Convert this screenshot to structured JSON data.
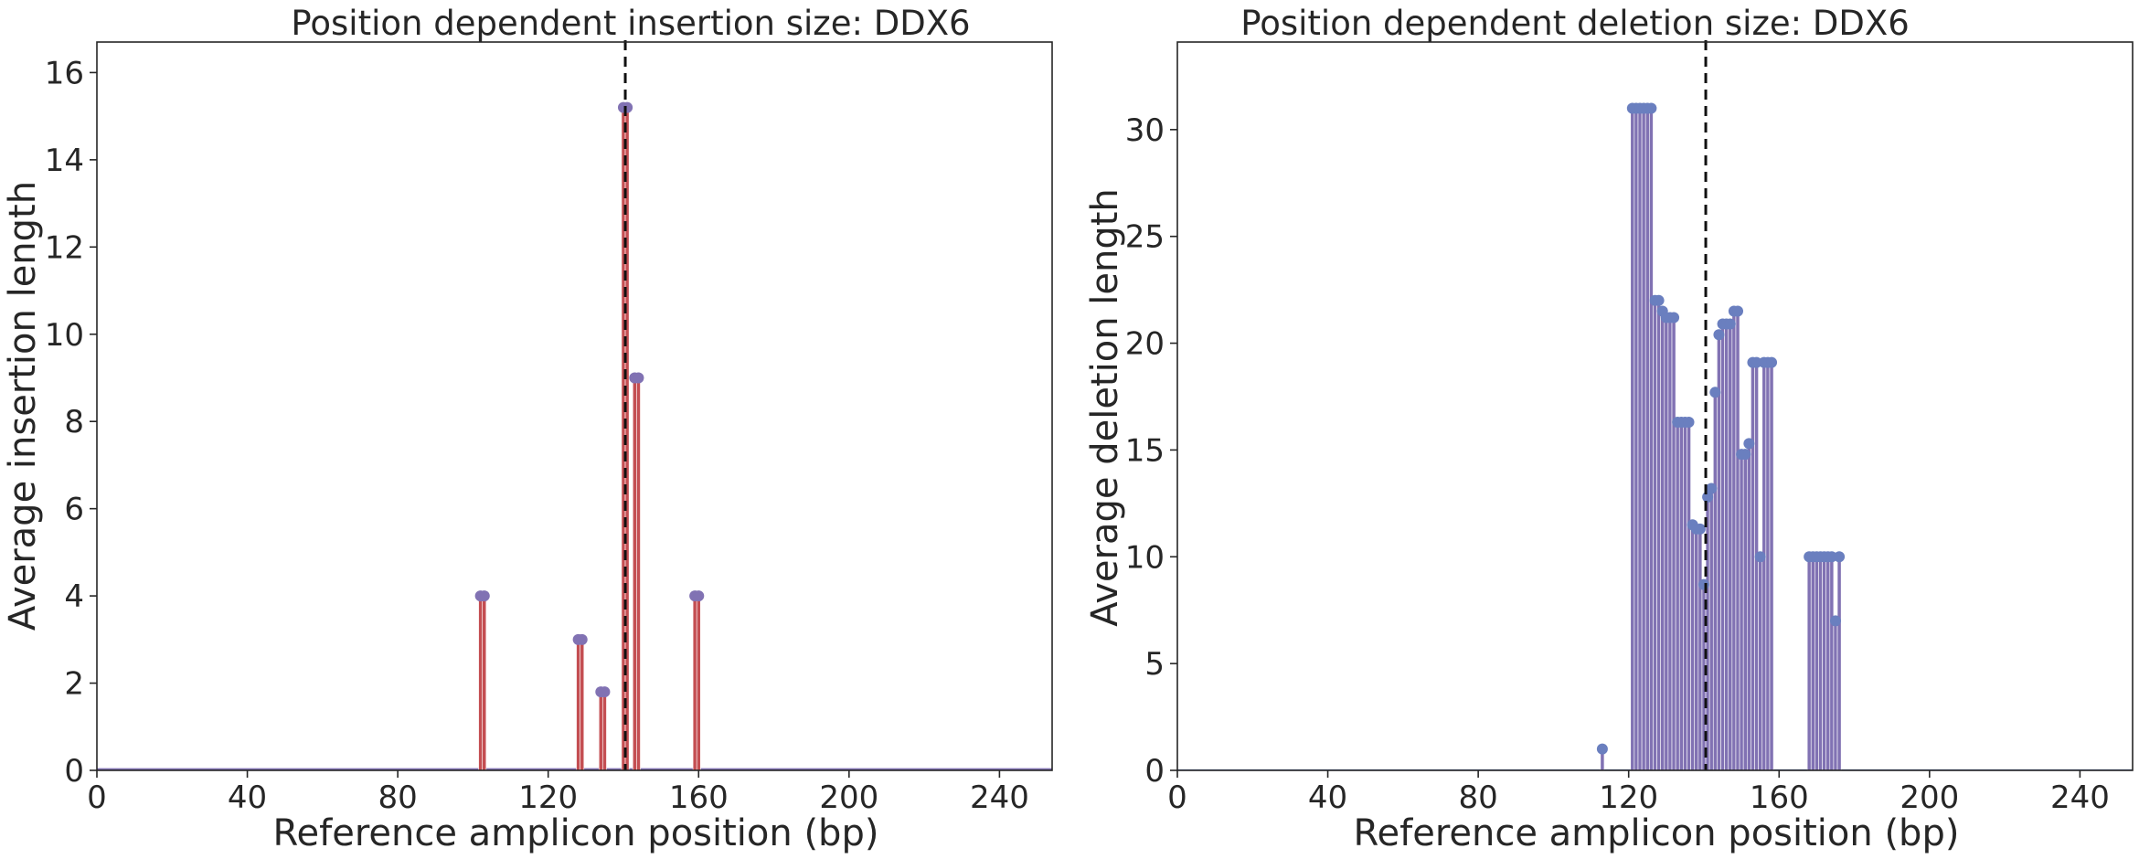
{
  "chart_data": [
    {
      "type": "bar",
      "title": "Position dependent insertion size: DDX6",
      "xlabel": "Reference amplicon position (bp)",
      "ylabel": "Average insertion length",
      "xlim": [
        0,
        254
      ],
      "ylim": [
        0,
        16.7
      ],
      "xticks": [
        0,
        40,
        80,
        120,
        160,
        200,
        240
      ],
      "yticks": [
        0,
        2,
        4,
        6,
        8,
        10,
        12,
        14,
        16
      ],
      "cut_site": 140.5,
      "baseline": 0.05,
      "color": "#c44e52",
      "marker_color": "#8172b3",
      "grid": false,
      "series": [
        {
          "x": [
            102,
            103,
            128,
            129,
            134,
            135,
            140,
            141,
            143,
            144,
            159,
            160
          ],
          "values": [
            4.0,
            4.0,
            3.0,
            3.0,
            1.8,
            1.8,
            15.2,
            15.2,
            9.0,
            9.0,
            4.0,
            4.0
          ]
        }
      ]
    },
    {
      "type": "bar",
      "title": "Position dependent deletion size: DDX6",
      "xlabel": "Reference amplicon position (bp)",
      "ylabel": "Average deletion length",
      "xlim": [
        0,
        254
      ],
      "ylim": [
        0,
        34.1
      ],
      "xticks": [
        0,
        40,
        80,
        120,
        160,
        200,
        240
      ],
      "yticks": [
        0,
        5,
        10,
        15,
        20,
        25,
        30
      ],
      "cut_site": 140.5,
      "baseline": 0.05,
      "color": "#8172b3",
      "marker_color": "#6a7fbf",
      "grid": false,
      "series": [
        {
          "x": [
            113,
            121,
            122,
            123,
            124,
            125,
            126,
            127,
            128,
            129,
            130,
            131,
            132,
            133,
            134,
            135,
            136,
            137,
            138,
            139,
            140,
            141,
            142,
            143,
            144,
            145,
            146,
            147,
            148,
            149,
            150,
            151,
            152,
            153,
            154,
            155,
            156,
            157,
            158,
            168,
            169,
            170,
            171,
            172,
            173,
            174,
            175,
            176
          ],
          "values": [
            1.0,
            31.0,
            31.0,
            31.0,
            31.0,
            31.0,
            31.0,
            22.0,
            22.0,
            21.5,
            21.2,
            21.2,
            21.2,
            16.3,
            16.3,
            16.3,
            16.3,
            11.5,
            11.3,
            11.3,
            8.7,
            12.8,
            13.2,
            17.7,
            20.4,
            20.9,
            20.9,
            20.9,
            21.5,
            21.5,
            14.8,
            14.8,
            15.3,
            19.1,
            19.1,
            10.0,
            19.1,
            19.1,
            19.1,
            10.0,
            10.0,
            10.0,
            10.0,
            10.0,
            10.0,
            10.0,
            7.0,
            10.0
          ]
        }
      ]
    }
  ]
}
